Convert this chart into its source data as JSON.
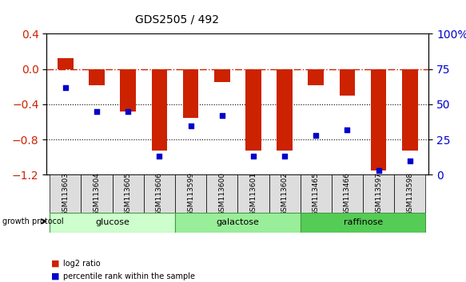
{
  "title": "GDS2505 / 492",
  "samples": [
    "GSM113603",
    "GSM113604",
    "GSM113605",
    "GSM113606",
    "GSM113599",
    "GSM113600",
    "GSM113601",
    "GSM113602",
    "GSM113465",
    "GSM113466",
    "GSM113597",
    "GSM113598"
  ],
  "log2_ratio": [
    0.12,
    -0.18,
    -0.48,
    -0.92,
    -0.55,
    -0.15,
    -0.92,
    -0.92,
    -0.18,
    -0.3,
    -1.15,
    -0.92
  ],
  "percentile_rank": [
    62,
    45,
    45,
    13,
    35,
    42,
    13,
    13,
    28,
    32,
    3,
    10
  ],
  "groups": [
    {
      "label": "glucose",
      "start": 0,
      "end": 4,
      "color": "#ccffcc"
    },
    {
      "label": "galactose",
      "start": 4,
      "end": 8,
      "color": "#99ee99"
    },
    {
      "label": "raffinose",
      "start": 8,
      "end": 12,
      "color": "#55cc55"
    }
  ],
  "bar_color": "#cc2200",
  "dot_color": "#0000cc",
  "ylim_left": [
    -1.2,
    0.4
  ],
  "ylim_right": [
    0,
    100
  ],
  "yticks_left": [
    -1.2,
    -0.8,
    -0.4,
    0.0,
    0.4
  ],
  "yticks_right": [
    0,
    25,
    50,
    75,
    100
  ],
  "hline_y": 0.0,
  "dotted_lines": [
    -0.4,
    -0.8
  ],
  "bar_width": 0.5,
  "background_color": "#ffffff",
  "group_label_color": "#000000",
  "growth_protocol_label": "growth protocol",
  "legend_items": [
    {
      "label": "log2 ratio",
      "color": "#cc2200",
      "marker": "s"
    },
    {
      "label": "percentile rank within the sample",
      "color": "#0000cc",
      "marker": "s"
    }
  ]
}
